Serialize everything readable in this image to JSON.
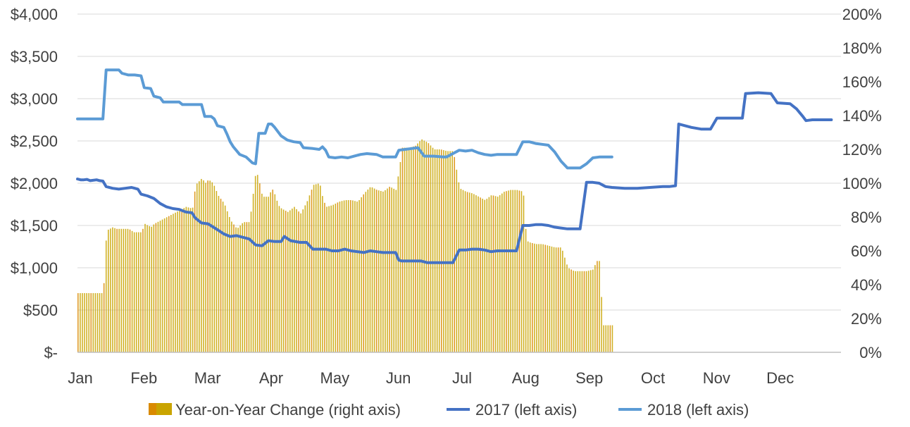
{
  "chart_data": {
    "type": "bar+line",
    "title": "",
    "x_tick_labels": [
      "Jan",
      "Feb",
      "Mar",
      "Apr",
      "May",
      "Jun",
      "Jul",
      "Aug",
      "Sep",
      "Oct",
      "Nov",
      "Dec"
    ],
    "y_left": {
      "ylim": [
        0,
        4000
      ],
      "tick_labels": [
        "$-",
        "$500",
        "$1,000",
        "$1,500",
        "$2,000",
        "$2,500",
        "$3,000",
        "$3,500",
        "$4,000"
      ],
      "tick_values": [
        0,
        500,
        1000,
        1500,
        2000,
        2500,
        3000,
        3500,
        4000
      ]
    },
    "y_right": {
      "ylim": [
        0,
        200
      ],
      "tick_labels": [
        "0%",
        "20%",
        "40%",
        "60%",
        "80%",
        "100%",
        "120%",
        "140%",
        "160%",
        "180%",
        "200%"
      ],
      "tick_values": [
        0,
        20,
        40,
        60,
        80,
        100,
        120,
        140,
        160,
        180,
        200
      ]
    },
    "grid": "horizontal",
    "legend_position": "bottom",
    "colors": {
      "yoy": "#c9a400",
      "yoy_dark": "#d98a00",
      "y2017": "#4472c4",
      "y2018": "#5b9bd5",
      "grid": "#d9d9d9",
      "axis": "#bfbfbf"
    },
    "series": [
      {
        "name": "Year-on-Year Change (right axis)",
        "type": "bar",
        "axis": "right",
        "unit": "%",
        "points": [
          [
            0.0,
            35
          ],
          [
            0.1,
            35
          ],
          [
            0.2,
            35
          ],
          [
            0.3,
            35
          ],
          [
            0.4,
            35
          ],
          [
            0.45,
            72
          ],
          [
            0.55,
            74
          ],
          [
            0.6,
            73
          ],
          [
            0.7,
            73
          ],
          [
            0.8,
            73
          ],
          [
            0.88,
            71
          ],
          [
            0.95,
            71
          ],
          [
            1.0,
            71
          ],
          [
            1.05,
            76
          ],
          [
            1.1,
            75
          ],
          [
            1.15,
            74
          ],
          [
            1.2,
            76
          ],
          [
            1.3,
            78
          ],
          [
            1.4,
            80
          ],
          [
            1.5,
            82
          ],
          [
            1.6,
            84
          ],
          [
            1.7,
            86
          ],
          [
            1.8,
            85
          ],
          [
            1.85,
            99
          ],
          [
            1.95,
            103
          ],
          [
            2.0,
            100
          ],
          [
            2.05,
            102
          ],
          [
            2.1,
            101
          ],
          [
            2.15,
            98
          ],
          [
            2.2,
            93
          ],
          [
            2.3,
            88
          ],
          [
            2.4,
            78
          ],
          [
            2.5,
            73
          ],
          [
            2.6,
            77
          ],
          [
            2.7,
            77
          ],
          [
            2.8,
            108
          ],
          [
            2.85,
            101
          ],
          [
            2.9,
            92
          ],
          [
            3.0,
            92
          ],
          [
            3.05,
            97
          ],
          [
            3.1,
            93
          ],
          [
            3.15,
            87
          ],
          [
            3.2,
            85
          ],
          [
            3.3,
            83
          ],
          [
            3.4,
            86
          ],
          [
            3.5,
            82
          ],
          [
            3.6,
            89
          ],
          [
            3.7,
            99
          ],
          [
            3.8,
            100
          ],
          [
            3.85,
            91
          ],
          [
            3.9,
            86
          ],
          [
            4.0,
            87
          ],
          [
            4.1,
            89
          ],
          [
            4.2,
            90
          ],
          [
            4.3,
            90
          ],
          [
            4.4,
            89
          ],
          [
            4.5,
            94
          ],
          [
            4.6,
            98
          ],
          [
            4.7,
            96
          ],
          [
            4.8,
            95
          ],
          [
            4.9,
            98
          ],
          [
            5.0,
            96
          ],
          [
            5.1,
            121
          ],
          [
            5.2,
            121
          ],
          [
            5.3,
            122
          ],
          [
            5.4,
            126
          ],
          [
            5.5,
            124
          ],
          [
            5.6,
            120
          ],
          [
            5.7,
            120
          ],
          [
            5.8,
            119
          ],
          [
            5.9,
            119
          ],
          [
            6.0,
            97
          ],
          [
            6.1,
            95
          ],
          [
            6.2,
            94
          ],
          [
            6.3,
            92
          ],
          [
            6.4,
            90
          ],
          [
            6.5,
            93
          ],
          [
            6.6,
            92
          ],
          [
            6.7,
            95
          ],
          [
            6.8,
            96
          ],
          [
            6.9,
            96
          ],
          [
            7.0,
            95
          ],
          [
            7.05,
            66
          ],
          [
            7.1,
            65
          ],
          [
            7.2,
            64
          ],
          [
            7.3,
            64
          ],
          [
            7.4,
            63
          ],
          [
            7.5,
            62
          ],
          [
            7.6,
            62
          ],
          [
            7.7,
            50
          ],
          [
            7.75,
            49
          ],
          [
            7.8,
            48
          ],
          [
            7.9,
            48
          ],
          [
            8.0,
            48
          ],
          [
            8.1,
            49
          ],
          [
            8.15,
            54
          ],
          [
            8.2,
            54
          ],
          [
            8.25,
            16
          ],
          [
            8.3,
            16
          ],
          [
            8.35,
            16
          ],
          [
            8.4,
            16
          ]
        ]
      },
      {
        "name": "2017 (left axis)",
        "type": "line",
        "axis": "left",
        "points": [
          [
            0.0,
            2050
          ],
          [
            0.05,
            2040
          ],
          [
            0.1,
            2040
          ],
          [
            0.15,
            2045
          ],
          [
            0.2,
            2030
          ],
          [
            0.3,
            2040
          ],
          [
            0.35,
            2030
          ],
          [
            0.4,
            2025
          ],
          [
            0.45,
            1960
          ],
          [
            0.55,
            1940
          ],
          [
            0.65,
            1930
          ],
          [
            0.75,
            1940
          ],
          [
            0.85,
            1950
          ],
          [
            0.9,
            1940
          ],
          [
            0.95,
            1930
          ],
          [
            1.0,
            1870
          ],
          [
            1.1,
            1850
          ],
          [
            1.2,
            1820
          ],
          [
            1.3,
            1760
          ],
          [
            1.4,
            1720
          ],
          [
            1.5,
            1700
          ],
          [
            1.6,
            1690
          ],
          [
            1.7,
            1660
          ],
          [
            1.8,
            1650
          ],
          [
            1.85,
            1590
          ],
          [
            1.95,
            1530
          ],
          [
            2.05,
            1520
          ],
          [
            2.2,
            1450
          ],
          [
            2.3,
            1400
          ],
          [
            2.4,
            1370
          ],
          [
            2.5,
            1380
          ],
          [
            2.6,
            1360
          ],
          [
            2.7,
            1340
          ],
          [
            2.8,
            1270
          ],
          [
            2.9,
            1260
          ],
          [
            3.0,
            1320
          ],
          [
            3.1,
            1310
          ],
          [
            3.2,
            1310
          ],
          [
            3.25,
            1370
          ],
          [
            3.35,
            1320
          ],
          [
            3.5,
            1300
          ],
          [
            3.6,
            1300
          ],
          [
            3.7,
            1220
          ],
          [
            3.8,
            1220
          ],
          [
            3.9,
            1220
          ],
          [
            4.0,
            1200
          ],
          [
            4.1,
            1200
          ],
          [
            4.2,
            1220
          ],
          [
            4.3,
            1200
          ],
          [
            4.4,
            1190
          ],
          [
            4.5,
            1180
          ],
          [
            4.6,
            1200
          ],
          [
            4.7,
            1190
          ],
          [
            4.8,
            1180
          ],
          [
            5.0,
            1180
          ],
          [
            5.05,
            1090
          ],
          [
            5.1,
            1080
          ],
          [
            5.2,
            1080
          ],
          [
            5.3,
            1080
          ],
          [
            5.4,
            1080
          ],
          [
            5.5,
            1060
          ],
          [
            5.6,
            1060
          ],
          [
            5.7,
            1060
          ],
          [
            5.8,
            1060
          ],
          [
            5.9,
            1060
          ],
          [
            6.0,
            1210
          ],
          [
            6.1,
            1210
          ],
          [
            6.2,
            1220
          ],
          [
            6.3,
            1220
          ],
          [
            6.4,
            1210
          ],
          [
            6.5,
            1190
          ],
          [
            6.6,
            1200
          ],
          [
            6.7,
            1200
          ],
          [
            6.8,
            1200
          ],
          [
            6.9,
            1200
          ],
          [
            7.0,
            1500
          ],
          [
            7.1,
            1500
          ],
          [
            7.2,
            1510
          ],
          [
            7.3,
            1510
          ],
          [
            7.4,
            1500
          ],
          [
            7.5,
            1480
          ],
          [
            7.6,
            1470
          ],
          [
            7.7,
            1460
          ],
          [
            7.8,
            1460
          ],
          [
            7.9,
            1460
          ],
          [
            8.0,
            2010
          ],
          [
            8.1,
            2010
          ],
          [
            8.2,
            2000
          ],
          [
            8.3,
            1960
          ],
          [
            8.4,
            1950
          ],
          [
            8.6,
            1940
          ],
          [
            8.8,
            1940
          ],
          [
            9.0,
            1950
          ],
          [
            9.2,
            1960
          ],
          [
            9.3,
            1960
          ],
          [
            9.4,
            1970
          ],
          [
            9.45,
            2700
          ],
          [
            9.55,
            2680
          ],
          [
            9.65,
            2660
          ],
          [
            9.8,
            2640
          ],
          [
            9.95,
            2640
          ],
          [
            10.05,
            2770
          ],
          [
            10.2,
            2770
          ],
          [
            10.35,
            2770
          ],
          [
            10.45,
            2770
          ],
          [
            10.5,
            3060
          ],
          [
            10.7,
            3070
          ],
          [
            10.9,
            3060
          ],
          [
            11.0,
            2950
          ],
          [
            11.2,
            2940
          ],
          [
            11.3,
            2880
          ],
          [
            11.4,
            2790
          ],
          [
            11.45,
            2740
          ],
          [
            11.55,
            2750
          ],
          [
            11.7,
            2750
          ],
          [
            11.85,
            2750
          ]
        ]
      },
      {
        "name": "2018 (left axis)",
        "type": "line",
        "axis": "left",
        "points": [
          [
            0.0,
            2760
          ],
          [
            0.1,
            2760
          ],
          [
            0.2,
            2760
          ],
          [
            0.3,
            2760
          ],
          [
            0.4,
            2760
          ],
          [
            0.45,
            3340
          ],
          [
            0.55,
            3340
          ],
          [
            0.65,
            3340
          ],
          [
            0.7,
            3300
          ],
          [
            0.8,
            3280
          ],
          [
            0.9,
            3280
          ],
          [
            1.0,
            3270
          ],
          [
            1.05,
            3130
          ],
          [
            1.15,
            3120
          ],
          [
            1.2,
            3030
          ],
          [
            1.3,
            3010
          ],
          [
            1.35,
            2960
          ],
          [
            1.5,
            2960
          ],
          [
            1.6,
            2960
          ],
          [
            1.65,
            2930
          ],
          [
            1.8,
            2930
          ],
          [
            1.95,
            2930
          ],
          [
            2.0,
            2790
          ],
          [
            2.1,
            2790
          ],
          [
            2.15,
            2760
          ],
          [
            2.2,
            2680
          ],
          [
            2.3,
            2660
          ],
          [
            2.35,
            2580
          ],
          [
            2.4,
            2490
          ],
          [
            2.45,
            2430
          ],
          [
            2.55,
            2340
          ],
          [
            2.65,
            2310
          ],
          [
            2.75,
            2240
          ],
          [
            2.8,
            2230
          ],
          [
            2.85,
            2590
          ],
          [
            2.95,
            2590
          ],
          [
            3.0,
            2700
          ],
          [
            3.05,
            2700
          ],
          [
            3.1,
            2660
          ],
          [
            3.2,
            2560
          ],
          [
            3.3,
            2510
          ],
          [
            3.4,
            2490
          ],
          [
            3.5,
            2480
          ],
          [
            3.55,
            2420
          ],
          [
            3.7,
            2410
          ],
          [
            3.8,
            2400
          ],
          [
            3.85,
            2430
          ],
          [
            3.9,
            2390
          ],
          [
            3.95,
            2310
          ],
          [
            4.05,
            2300
          ],
          [
            4.15,
            2310
          ],
          [
            4.25,
            2300
          ],
          [
            4.35,
            2320
          ],
          [
            4.45,
            2340
          ],
          [
            4.55,
            2350
          ],
          [
            4.7,
            2340
          ],
          [
            4.8,
            2310
          ],
          [
            5.0,
            2310
          ],
          [
            5.05,
            2390
          ],
          [
            5.15,
            2400
          ],
          [
            5.25,
            2410
          ],
          [
            5.35,
            2420
          ],
          [
            5.45,
            2320
          ],
          [
            5.6,
            2320
          ],
          [
            5.75,
            2310
          ],
          [
            5.8,
            2310
          ],
          [
            6.0,
            2390
          ],
          [
            6.1,
            2380
          ],
          [
            6.2,
            2390
          ],
          [
            6.3,
            2360
          ],
          [
            6.4,
            2340
          ],
          [
            6.5,
            2330
          ],
          [
            6.6,
            2340
          ],
          [
            6.7,
            2340
          ],
          [
            6.8,
            2340
          ],
          [
            6.9,
            2340
          ],
          [
            7.0,
            2490
          ],
          [
            7.1,
            2490
          ],
          [
            7.2,
            2470
          ],
          [
            7.3,
            2460
          ],
          [
            7.4,
            2450
          ],
          [
            7.5,
            2370
          ],
          [
            7.6,
            2260
          ],
          [
            7.7,
            2180
          ],
          [
            7.8,
            2180
          ],
          [
            7.9,
            2180
          ],
          [
            8.0,
            2230
          ],
          [
            8.1,
            2300
          ],
          [
            8.2,
            2310
          ],
          [
            8.3,
            2310
          ],
          [
            8.4,
            2310
          ]
        ]
      }
    ]
  }
}
